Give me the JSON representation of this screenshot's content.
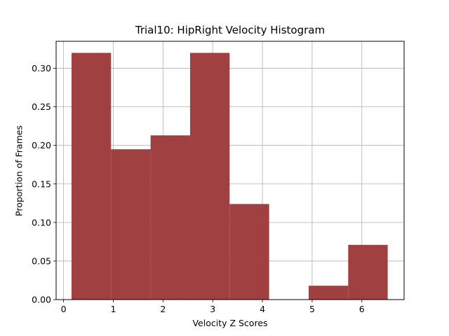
{
  "chart_data": {
    "type": "bar",
    "title": "Trial10: HipRight Velocity Histogram",
    "xlabel": "Velocity Z Scores",
    "ylabel": "Proportion of Frames",
    "xlim": [
      -0.15,
      6.85
    ],
    "ylim": [
      0,
      0.335
    ],
    "grid": true,
    "bar_color": "#a04040",
    "bins": [
      {
        "x0": 0.16,
        "x1": 0.955,
        "value": 0.32
      },
      {
        "x0": 0.955,
        "x1": 1.75,
        "value": 0.195
      },
      {
        "x0": 1.75,
        "x1": 2.545,
        "value": 0.213
      },
      {
        "x0": 2.545,
        "x1": 3.34,
        "value": 0.32
      },
      {
        "x0": 3.34,
        "x1": 4.135,
        "value": 0.124
      },
      {
        "x0": 4.135,
        "x1": 4.93,
        "value": 0.0
      },
      {
        "x0": 4.93,
        "x1": 5.725,
        "value": 0.018
      },
      {
        "x0": 5.725,
        "x1": 6.52,
        "value": 0.071
      }
    ],
    "x_ticks": [
      0,
      1,
      2,
      3,
      4,
      5,
      6
    ],
    "x_tick_labels": [
      "0",
      "1",
      "2",
      "3",
      "4",
      "5",
      "6"
    ],
    "y_ticks": [
      0.0,
      0.05,
      0.1,
      0.15,
      0.2,
      0.25,
      0.3
    ],
    "y_tick_labels": [
      "0.00",
      "0.05",
      "0.10",
      "0.15",
      "0.20",
      "0.25",
      "0.30"
    ]
  }
}
